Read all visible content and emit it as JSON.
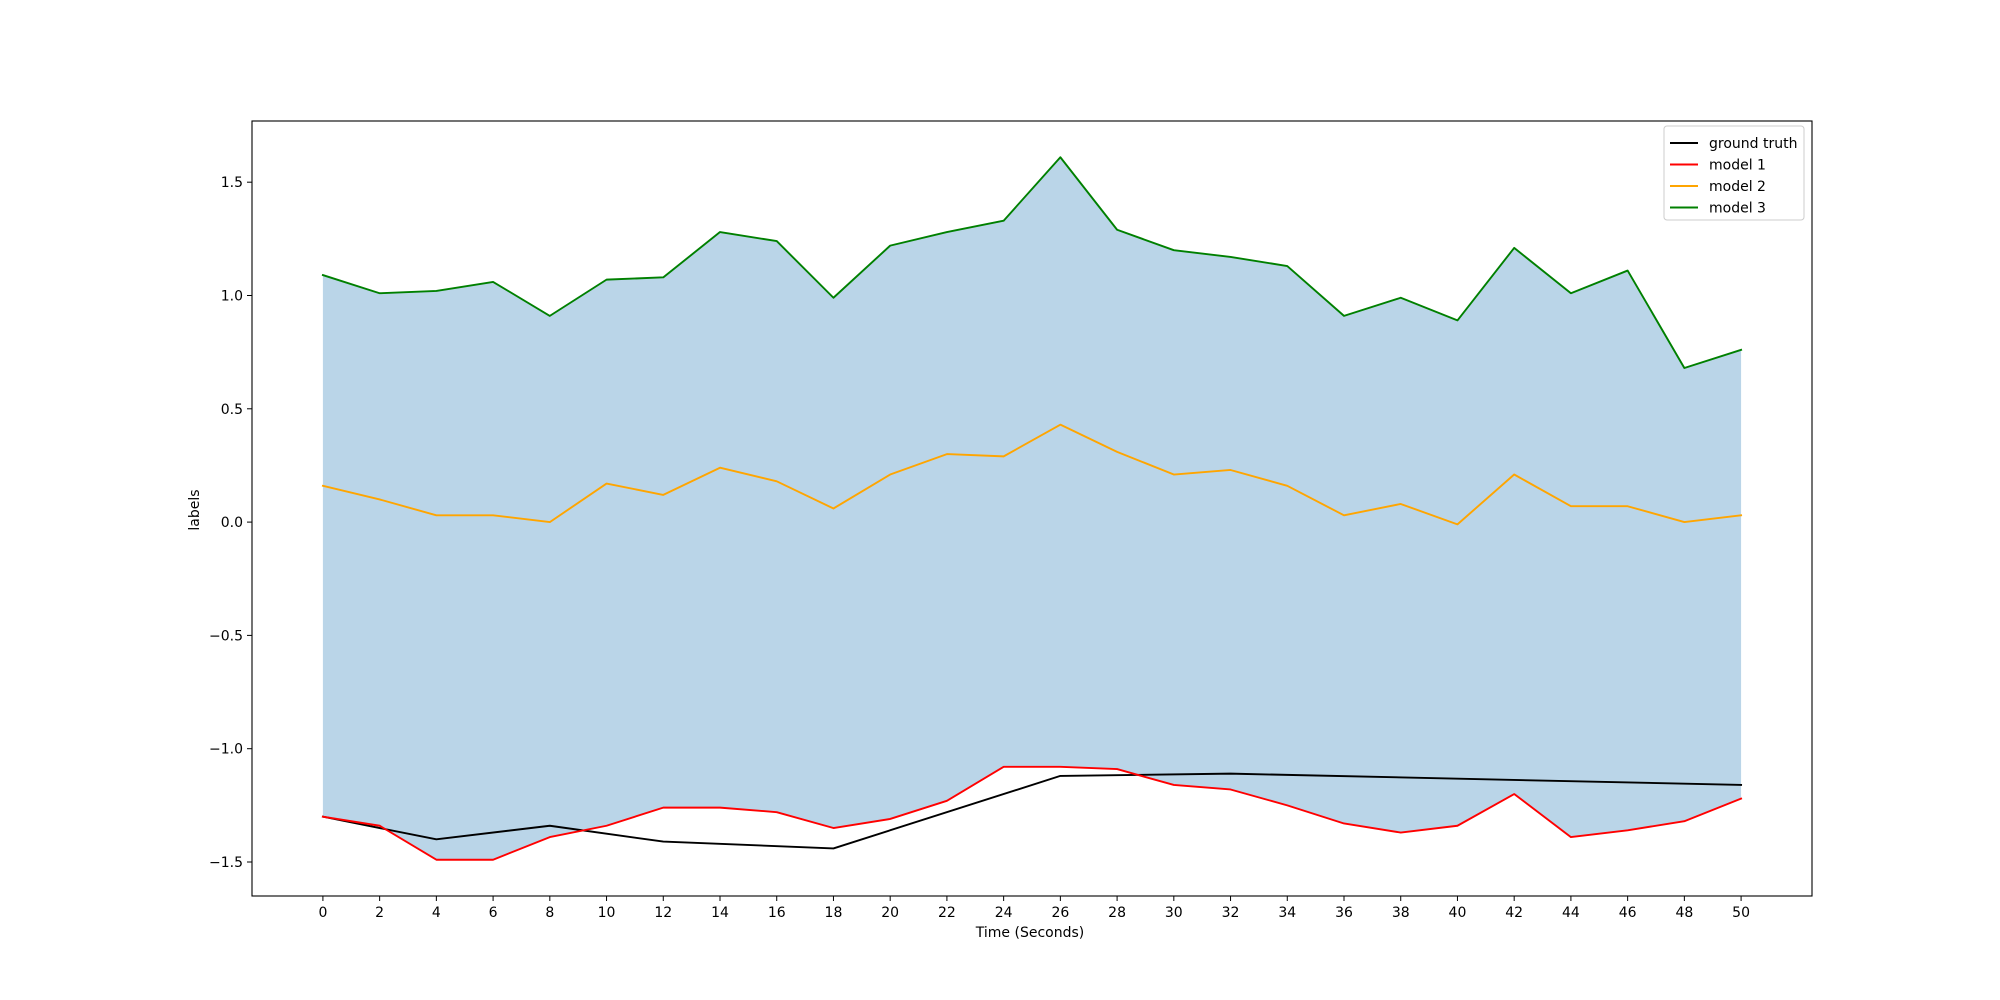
{
  "chart_data": {
    "type": "line",
    "title": "",
    "xlabel": "Time (Seconds)",
    "ylabel": "labels",
    "xlim": [
      -2.5,
      52.5
    ],
    "ylim": [
      -1.65,
      1.77
    ],
    "x_ticks": [
      0,
      2,
      4,
      6,
      8,
      10,
      12,
      14,
      16,
      18,
      20,
      22,
      24,
      26,
      28,
      30,
      32,
      34,
      36,
      38,
      40,
      42,
      44,
      46,
      48,
      50
    ],
    "y_ticks": [
      -1.5,
      -1.0,
      -0.5,
      0.0,
      0.5,
      1.0,
      1.5
    ],
    "y_tick_labels": [
      "−1.5",
      "−1.0",
      "−0.5",
      "0.0",
      "0.5",
      "1.0",
      "1.5"
    ],
    "grid": false,
    "legend_position": "top-right",
    "fill_between": {
      "lower_series": "model 1",
      "upper_series": "model 3",
      "color": "#bad5e8"
    },
    "x": [
      0,
      2,
      4,
      6,
      8,
      10,
      12,
      14,
      16,
      18,
      20,
      22,
      24,
      26,
      28,
      30,
      32,
      34,
      36,
      38,
      40,
      42,
      44,
      46,
      48,
      50
    ],
    "series": [
      {
        "name": "ground truth",
        "color": "#000000",
        "x": [
          0,
          4,
          8,
          12,
          18,
          26,
          32,
          50
        ],
        "values": [
          -1.3,
          -1.4,
          -1.34,
          -1.41,
          -1.44,
          -1.12,
          -1.11,
          -1.16
        ]
      },
      {
        "name": "model 1",
        "color": "#ff0000",
        "values": [
          -1.3,
          -1.34,
          -1.49,
          -1.49,
          -1.39,
          -1.34,
          -1.26,
          -1.26,
          -1.28,
          -1.35,
          -1.31,
          -1.23,
          -1.08,
          -1.08,
          -1.09,
          -1.16,
          -1.18,
          -1.25,
          -1.33,
          -1.37,
          -1.34,
          -1.2,
          -1.39,
          -1.36,
          -1.32,
          -1.22
        ]
      },
      {
        "name": "model 2",
        "color": "#ffa500",
        "values": [
          0.16,
          0.1,
          0.03,
          0.03,
          0.0,
          0.17,
          0.12,
          0.24,
          0.18,
          0.06,
          0.21,
          0.3,
          0.29,
          0.43,
          0.31,
          0.21,
          0.23,
          0.16,
          0.03,
          0.08,
          -0.01,
          0.21,
          0.07,
          0.07,
          0.0,
          0.03
        ]
      },
      {
        "name": "model 3",
        "color": "#008000",
        "values": [
          1.09,
          1.01,
          1.02,
          1.06,
          0.91,
          1.07,
          1.08,
          1.28,
          1.24,
          0.99,
          1.22,
          1.28,
          1.33,
          1.61,
          1.29,
          1.2,
          1.17,
          1.13,
          0.91,
          0.99,
          0.89,
          1.21,
          1.01,
          1.11,
          0.68,
          0.76
        ]
      }
    ]
  }
}
